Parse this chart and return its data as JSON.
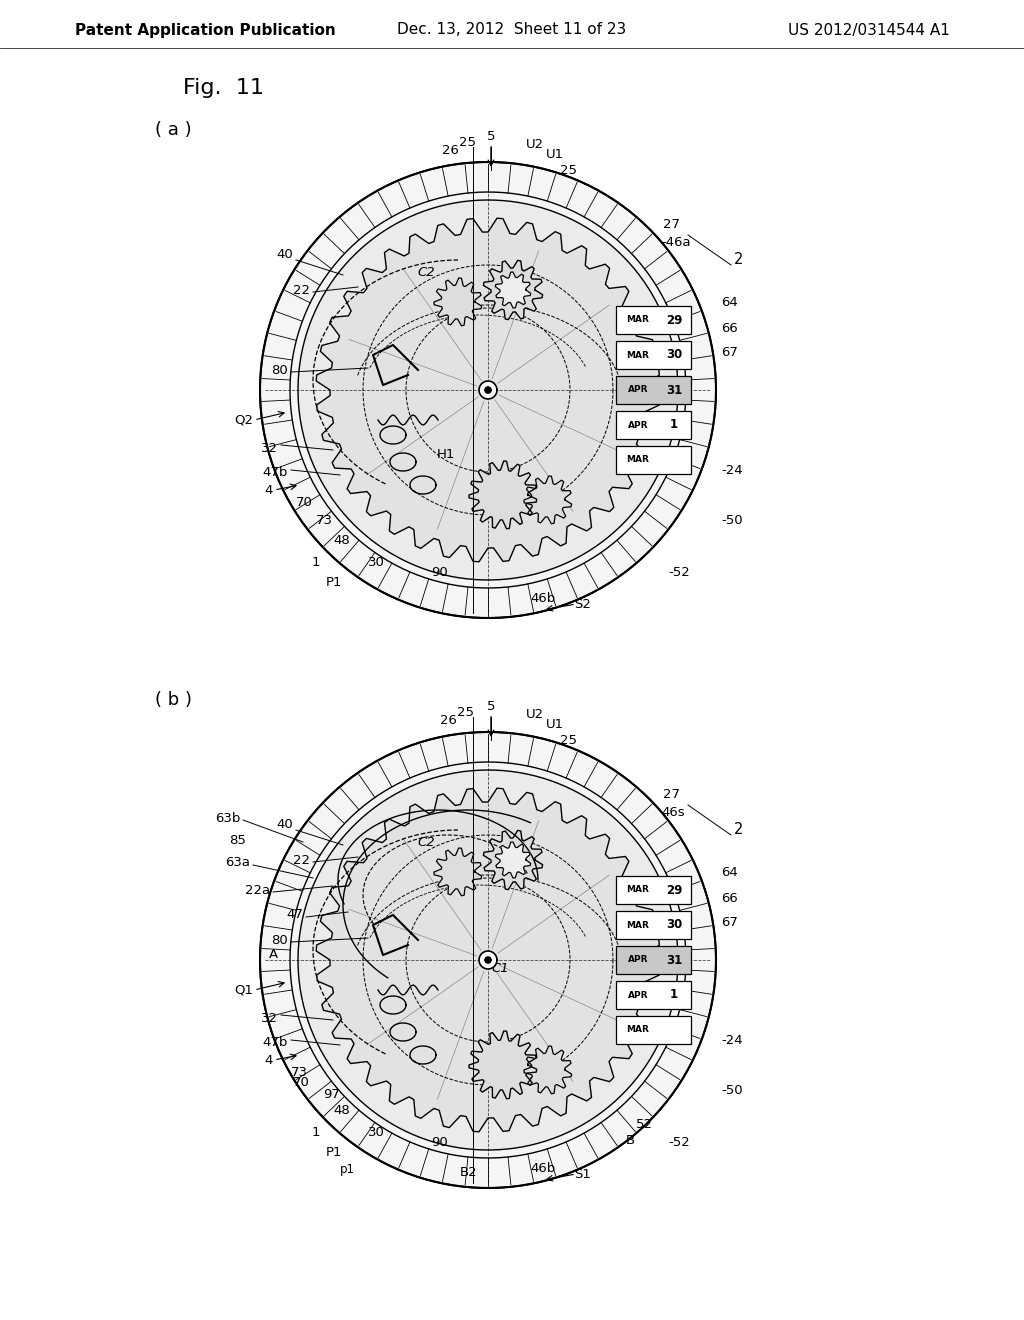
{
  "background_color": "#ffffff",
  "header_left": "Patent Application Publication",
  "header_middle": "Dec. 13, 2012  Sheet 11 of 23",
  "header_right": "US 2012/0314544 A1",
  "fig_label": "Fig.  11",
  "sub_a": "( a )",
  "sub_b": "( b )",
  "header_fontsize": 11,
  "fig_label_fontsize": 16,
  "sub_label_fontsize": 13,
  "annotation_fontsize": 9.5
}
